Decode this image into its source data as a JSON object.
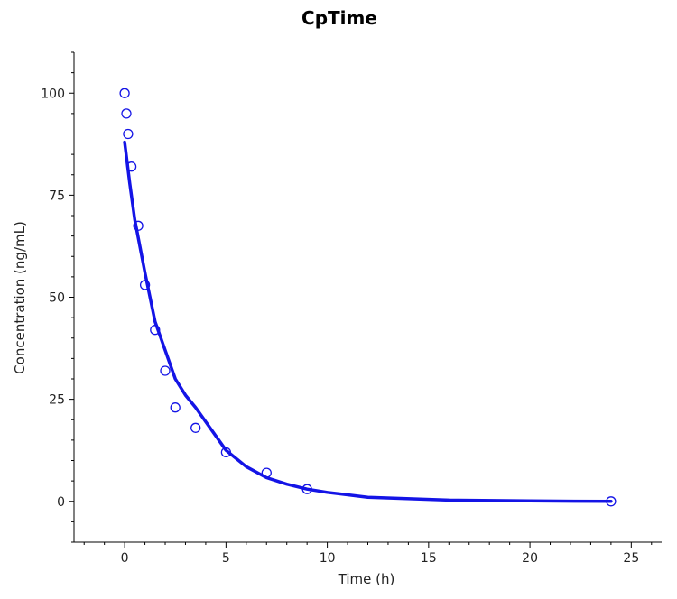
{
  "colors": {
    "series": "#1414e6",
    "axis": "#000000",
    "background": "#ffffff"
  },
  "chart_data": {
    "type": "line",
    "title": "CpTime",
    "xlabel": "Time (h)",
    "ylabel": "Concentration (ng/mL)",
    "xlim": [
      -2.5,
      26.5
    ],
    "ylim": [
      -10,
      110
    ],
    "xticks": [
      0,
      5,
      10,
      15,
      20,
      25
    ],
    "yticks": [
      0,
      25,
      50,
      75,
      100
    ],
    "grid": false,
    "legend": "none",
    "series": [
      {
        "kind": "scatter",
        "marker": "open-circle",
        "x": [
          0,
          0.083,
          0.167,
          0.333,
          0.667,
          1,
          1.5,
          2,
          2.5,
          3.5,
          5,
          7,
          9,
          24
        ],
        "y": [
          100,
          95,
          90,
          82,
          67.5,
          53,
          42,
          32,
          23,
          18,
          12,
          7,
          3,
          0
        ]
      },
      {
        "kind": "line",
        "x": [
          0,
          0.25,
          0.5,
          1,
          1.5,
          2,
          2.5,
          3,
          3.5,
          4,
          5,
          6,
          7,
          8,
          9,
          10,
          12,
          16,
          20,
          24
        ],
        "y": [
          88,
          78,
          69,
          56,
          44,
          37,
          30,
          26,
          23,
          19.5,
          12.5,
          8.5,
          5.8,
          4.2,
          3,
          2.2,
          1,
          0.3,
          0.1,
          0
        ]
      }
    ]
  }
}
